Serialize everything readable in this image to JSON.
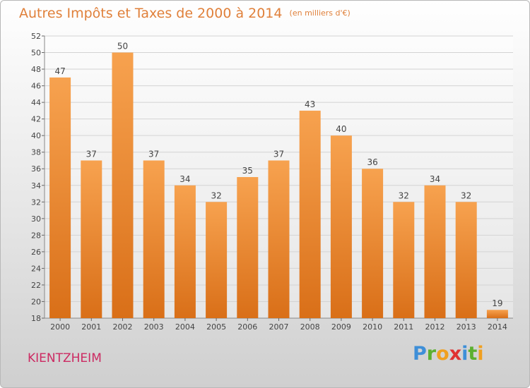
{
  "header": {
    "title": "Autres Impôts et Taxes de 2000 à 2014",
    "subtitle": "(en milliers d'€)"
  },
  "footer": {
    "town": "KIENTZHEIM",
    "logo": "Proxiti"
  },
  "colors": {
    "bar_top": "#f7a24f",
    "bar_bottom": "#d96f18",
    "title": "#e0803a",
    "town": "#cc2a62"
  },
  "chart_data": {
    "type": "bar",
    "categories": [
      "2000",
      "2001",
      "2002",
      "2003",
      "2004",
      "2005",
      "2006",
      "2007",
      "2008",
      "2009",
      "2010",
      "2011",
      "2012",
      "2013",
      "2014"
    ],
    "values": [
      47,
      37,
      50,
      37,
      34,
      32,
      35,
      37,
      43,
      40,
      36,
      32,
      34,
      32,
      19
    ],
    "title": "Autres Impôts et Taxes de 2000 à 2014",
    "subtitle": "(en milliers d'€)",
    "ylim": [
      18,
      52
    ],
    "yticks": [
      18,
      20,
      22,
      24,
      26,
      28,
      30,
      32,
      34,
      36,
      38,
      40,
      42,
      44,
      46,
      48,
      50,
      52
    ],
    "grid": "horizontal",
    "data_labels": true
  }
}
